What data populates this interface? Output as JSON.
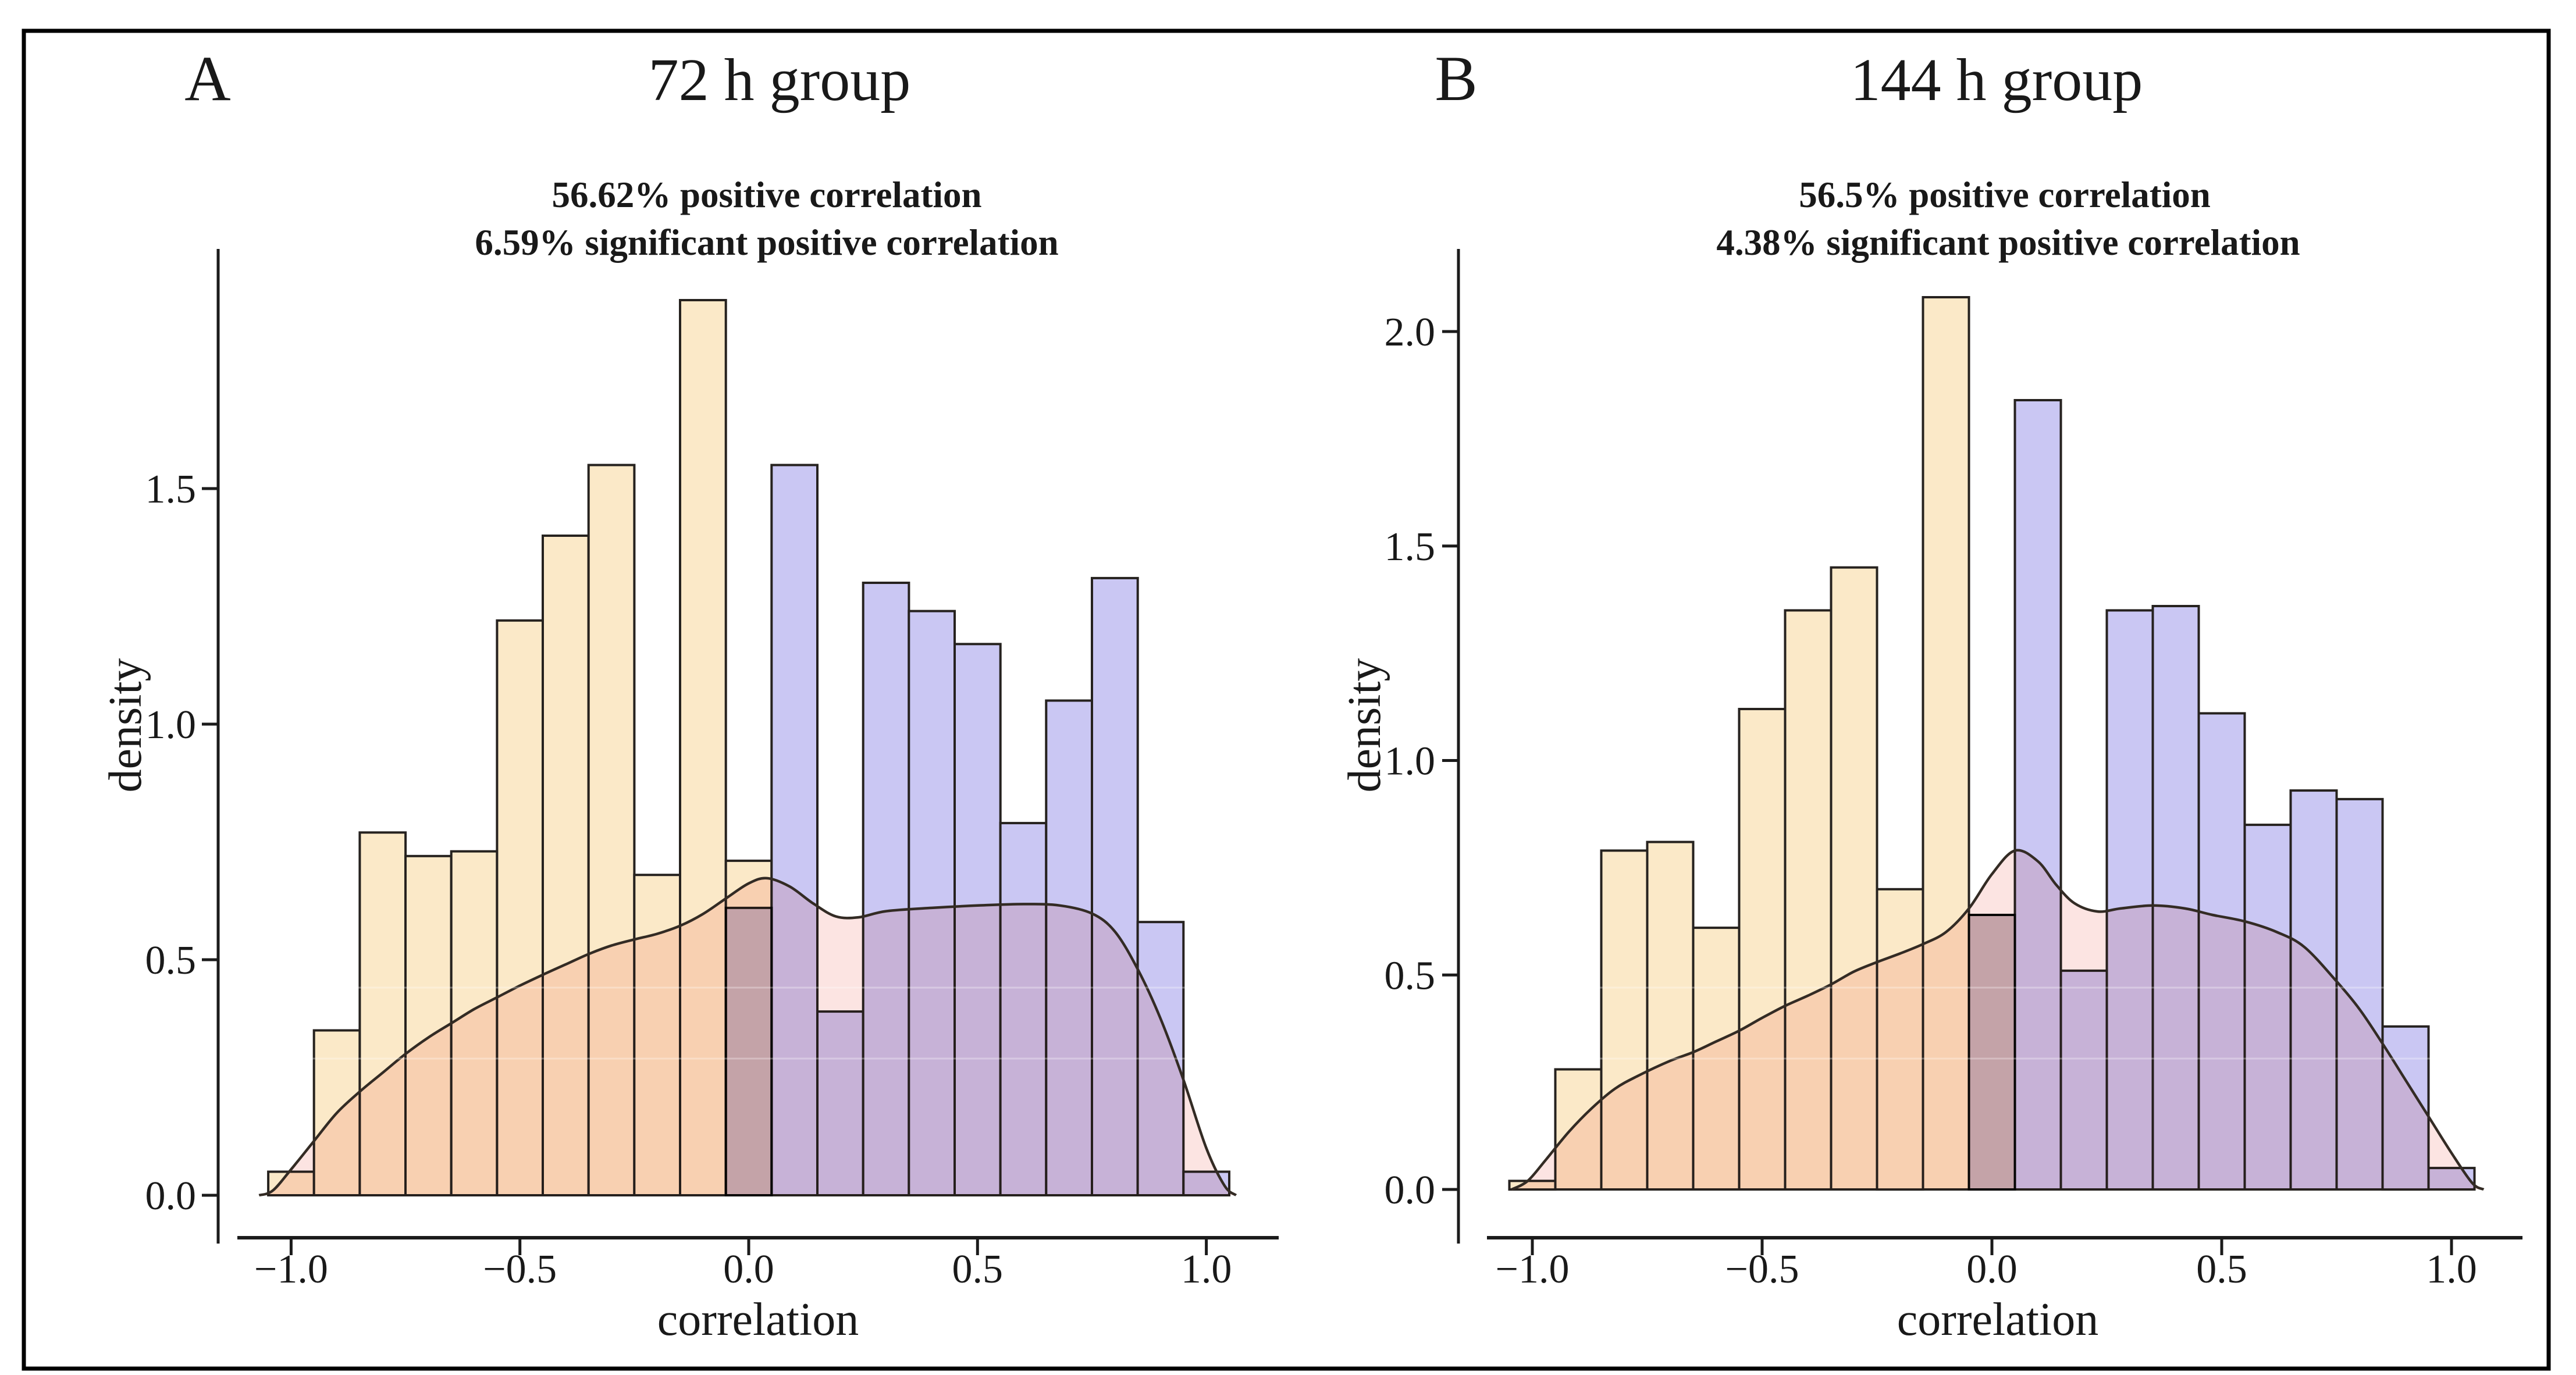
{
  "figure": {
    "background_color": "#ffffff",
    "border_color": "#000000",
    "panels": [
      {
        "panel_label": "A",
        "title": "72 h group",
        "annotation_line1": "56.62% positive correlation",
        "annotation_line2": "6.59% significant positive correlation",
        "xlabel": "correlation",
        "ylabel": "density"
      },
      {
        "panel_label": "B",
        "title": "144 h group",
        "annotation_line1": "56.5% positive correlation",
        "annotation_line2": "4.38% significant positive correlation",
        "xlabel": "correlation",
        "ylabel": "density"
      }
    ]
  },
  "chart_data": [
    {
      "type": "bar",
      "subtype": "histogram_with_kde",
      "panel": "A",
      "title": "72 h group",
      "annotations": [
        "56.62% positive correlation",
        "6.59% significant positive correlation"
      ],
      "xlabel": "correlation",
      "ylabel": "density",
      "grid": false,
      "legend": "none",
      "bin_start": -1.05,
      "bin_width": 0.1,
      "bar_heights": [
        0.05,
        0.35,
        0.77,
        0.72,
        0.73,
        1.22,
        1.4,
        1.55,
        0.68,
        1.9,
        0.71,
        1.55,
        0.39,
        1.3,
        1.24,
        1.17,
        0.79,
        1.05,
        1.31,
        0.58,
        0.05
      ],
      "n_negative_bins": 11,
      "boundary_overlap_bar": {
        "from": -0.05,
        "to": 0.05,
        "height": 0.61
      },
      "colors": {
        "negative_bars": "#fbe9c8",
        "positive_bars": "#cac7f3",
        "bar_edge": "#26221f",
        "kde_fill": "#fce4e2",
        "kde_line": "#332b24"
      },
      "xlim": [
        -1.18,
        1.17
      ],
      "ylim": [
        0,
        2.0
      ],
      "xticks": [
        -1.0,
        -0.5,
        0.0,
        0.5,
        1.0
      ],
      "xtick_labels": [
        "−1.0",
        "−0.5",
        "0.0",
        "0.5",
        "1.0"
      ],
      "yticks": [
        0.0,
        0.5,
        1.0,
        1.5
      ],
      "ytick_labels": [
        "0.0",
        "0.5",
        "1.0",
        "1.5"
      ],
      "kde_points": [
        [
          -1.07,
          0
        ],
        [
          -1.04,
          0.01
        ],
        [
          -1.0,
          0.055
        ],
        [
          -0.95,
          0.115
        ],
        [
          -0.9,
          0.175
        ],
        [
          -0.85,
          0.22
        ],
        [
          -0.8,
          0.26
        ],
        [
          -0.75,
          0.3
        ],
        [
          -0.7,
          0.335
        ],
        [
          -0.65,
          0.365
        ],
        [
          -0.6,
          0.395
        ],
        [
          -0.55,
          0.42
        ],
        [
          -0.5,
          0.445
        ],
        [
          -0.45,
          0.468
        ],
        [
          -0.4,
          0.49
        ],
        [
          -0.35,
          0.512
        ],
        [
          -0.3,
          0.53
        ],
        [
          -0.25,
          0.543
        ],
        [
          -0.2,
          0.555
        ],
        [
          -0.15,
          0.572
        ],
        [
          -0.1,
          0.597
        ],
        [
          -0.05,
          0.63
        ],
        [
          0.0,
          0.662
        ],
        [
          0.04,
          0.673
        ],
        [
          0.09,
          0.655
        ],
        [
          0.14,
          0.62
        ],
        [
          0.19,
          0.592
        ],
        [
          0.24,
          0.59
        ],
        [
          0.3,
          0.603
        ],
        [
          0.4,
          0.61
        ],
        [
          0.5,
          0.615
        ],
        [
          0.6,
          0.618
        ],
        [
          0.68,
          0.615
        ],
        [
          0.75,
          0.598
        ],
        [
          0.8,
          0.56
        ],
        [
          0.85,
          0.48
        ],
        [
          0.9,
          0.375
        ],
        [
          0.95,
          0.245
        ],
        [
          1.0,
          0.1
        ],
        [
          1.04,
          0.02
        ],
        [
          1.065,
          0
        ]
      ]
    },
    {
      "type": "bar",
      "subtype": "histogram_with_kde",
      "panel": "B",
      "title": "144 h group",
      "annotations": [
        "56.5% positive correlation",
        "4.38% significant positive correlation"
      ],
      "xlabel": "correlation",
      "ylabel": "density",
      "grid": false,
      "legend": "none",
      "bin_start": -1.05,
      "bin_width": 0.1,
      "bar_heights": [
        0.02,
        0.28,
        0.79,
        0.81,
        0.61,
        1.12,
        1.35,
        1.45,
        0.7,
        2.08,
        0.64,
        1.84,
        0.51,
        1.35,
        1.36,
        1.11,
        0.85,
        0.93,
        0.91,
        0.38,
        0.05
      ],
      "n_negative_bins": 11,
      "boundary_overlap_bar": {
        "from": -0.05,
        "to": 0.05,
        "height": 0.64
      },
      "colors": {
        "negative_bars": "#fbe9c8",
        "positive_bars": "#cac7f3",
        "bar_edge": "#26221f",
        "kde_fill": "#fce4e2",
        "kde_line": "#332b24"
      },
      "xlim": [
        -1.18,
        1.17
      ],
      "ylim": [
        0,
        2.2
      ],
      "xticks": [
        -1.0,
        -0.5,
        0.0,
        0.5,
        1.0
      ],
      "xtick_labels": [
        "−1.0",
        "−0.5",
        "0.0",
        "0.5",
        "1.0"
      ],
      "yticks": [
        0.0,
        0.5,
        1.0,
        1.5,
        2.0
      ],
      "ytick_labels": [
        "0.0",
        "0.5",
        "1.0",
        "1.5",
        "2.0"
      ],
      "kde_points": [
        [
          -1.045,
          0
        ],
        [
          -1.01,
          0.02
        ],
        [
          -0.97,
          0.07
        ],
        [
          -0.92,
          0.135
        ],
        [
          -0.87,
          0.19
        ],
        [
          -0.82,
          0.235
        ],
        [
          -0.77,
          0.265
        ],
        [
          -0.7,
          0.3
        ],
        [
          -0.65,
          0.32
        ],
        [
          -0.6,
          0.345
        ],
        [
          -0.55,
          0.37
        ],
        [
          -0.5,
          0.4
        ],
        [
          -0.45,
          0.428
        ],
        [
          -0.4,
          0.452
        ],
        [
          -0.35,
          0.478
        ],
        [
          -0.3,
          0.508
        ],
        [
          -0.25,
          0.53
        ],
        [
          -0.2,
          0.55
        ],
        [
          -0.15,
          0.572
        ],
        [
          -0.1,
          0.6
        ],
        [
          -0.05,
          0.655
        ],
        [
          0.0,
          0.735
        ],
        [
          0.05,
          0.79
        ],
        [
          0.1,
          0.765
        ],
        [
          0.14,
          0.71
        ],
        [
          0.18,
          0.667
        ],
        [
          0.23,
          0.648
        ],
        [
          0.28,
          0.655
        ],
        [
          0.35,
          0.662
        ],
        [
          0.42,
          0.655
        ],
        [
          0.48,
          0.64
        ],
        [
          0.55,
          0.625
        ],
        [
          0.62,
          0.6
        ],
        [
          0.68,
          0.565
        ],
        [
          0.75,
          0.485
        ],
        [
          0.8,
          0.42
        ],
        [
          0.85,
          0.34
        ],
        [
          0.9,
          0.255
        ],
        [
          0.95,
          0.17
        ],
        [
          1.0,
          0.085
        ],
        [
          1.045,
          0.015
        ],
        [
          1.07,
          0
        ]
      ]
    }
  ]
}
